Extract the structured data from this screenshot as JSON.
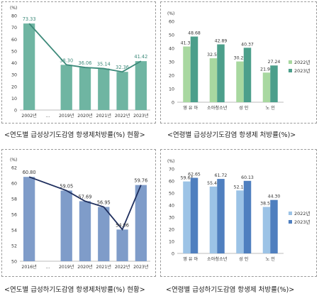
{
  "colors": {
    "teal_bar": "#6fb5a2",
    "teal_line": "#3d8a7a",
    "green_light": "#a8d8a0",
    "green_dark": "#4c9f8b",
    "blue_bar": "#7f9cc9",
    "blue_line": "#1f2f5e",
    "blue_light": "#9cc3e6",
    "blue_dark": "#4f7fbf",
    "axis": "#bdbdbd"
  },
  "captions": [
    "<연도별 급성상기도감염 항생제처방률(%) 현황>",
    "<연령별 급성상기도감염 항생제 처방률(%)>",
    "<연도별 급성하기도감염 항생제처방률(%) 현황>",
    "<연령별 급성하기도감염 항생제 처방률(%)>"
  ],
  "chart_data": [
    {
      "type": "bar",
      "categories": [
        "2002년",
        "...",
        "2019년",
        "2020년",
        "2021년",
        "2022년",
        "2023년"
      ],
      "values": [
        73.33,
        null,
        38.3,
        36.06,
        35.14,
        32.36,
        41.42
      ],
      "value_labels": [
        "73.33",
        "",
        "38.30",
        "36.06",
        "35.14",
        "32.36",
        "41.42"
      ],
      "overlay": "line",
      "ylabel": "(%)",
      "ylim": [
        0,
        80
      ],
      "yticks": [
        "0",
        "10",
        "20",
        "30",
        "40",
        "50",
        "60",
        "70",
        "80"
      ],
      "grid": false
    },
    {
      "type": "bar",
      "categories": [
        "영 유 아",
        "소아청소년",
        "성 인",
        "노 인"
      ],
      "series": [
        {
          "name": "2022년",
          "values": [
            41.31,
            32.59,
            30.22,
            21.96
          ]
        },
        {
          "name": "2023년",
          "values": [
            48.68,
            42.89,
            40.37,
            27.24
          ]
        }
      ],
      "value_labels": [
        [
          "41.31",
          "32.59",
          "30.22",
          "21.96"
        ],
        [
          "48.68",
          "42.89",
          "40.37",
          "27.24"
        ]
      ],
      "ylabel": "(%)",
      "ylim": [
        0,
        60
      ],
      "yticks": [
        "0",
        "10",
        "20",
        "30",
        "40",
        "50",
        "60"
      ],
      "legend": "right",
      "grid": false
    },
    {
      "type": "bar",
      "categories": [
        "2016년",
        "...",
        "2019년",
        "2020년",
        "2021년",
        "2022년",
        "2023년"
      ],
      "values": [
        60.8,
        null,
        59.05,
        57.69,
        56.95,
        54.06,
        59.76
      ],
      "value_labels": [
        "60.80",
        "",
        "59.05",
        "57.69",
        "56.95",
        "54.06",
        "59.76"
      ],
      "overlay": "line",
      "ylabel": "(%)",
      "ylim": [
        50,
        62
      ],
      "yticks": [
        "50",
        "52",
        "54",
        "56",
        "58",
        "60",
        "62"
      ],
      "grid": false
    },
    {
      "type": "bar",
      "categories": [
        "영 유 아",
        "소아청소년",
        "성 인",
        "노 인"
      ],
      "series": [
        {
          "name": "2022년",
          "values": [
            59.64,
            55.4,
            52.18,
            38.53
          ]
        },
        {
          "name": "2023년",
          "values": [
            62.65,
            61.72,
            60.13,
            44.3
          ]
        }
      ],
      "value_labels": [
        [
          "59.64",
          "55.40",
          "52.18",
          "38.53"
        ],
        [
          "62.65",
          "61.72",
          "60.13",
          "44.30"
        ]
      ],
      "ylabel": "(%)",
      "ylim": [
        0,
        70
      ],
      "yticks": [
        "0",
        "10",
        "20",
        "30",
        "40",
        "50",
        "60",
        "70"
      ],
      "legend": "right",
      "grid": false
    }
  ]
}
